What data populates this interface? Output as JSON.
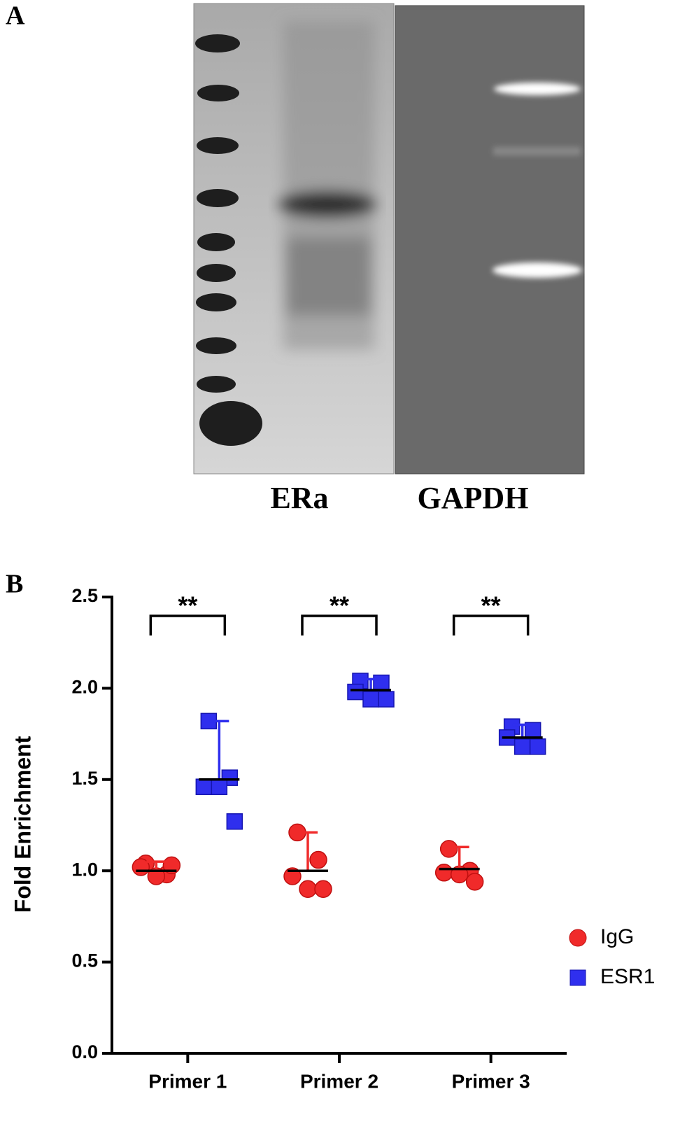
{
  "panel_a": {
    "label": "A",
    "lanes": [
      "ERa",
      "GAPDH"
    ]
  },
  "chart_data": {
    "type": "dot",
    "panel_label": "B",
    "y_label": "Fold Enrichment",
    "categories": [
      "Primer 1",
      "Primer 2",
      "Primer 3"
    ],
    "series": [
      {
        "name": "IgG",
        "color": "#f02a2a",
        "marker": "circle",
        "values": [
          [
            1.04,
            0.98,
            1.02,
            0.97,
            1.03
          ],
          [
            1.21,
            1.06,
            0.97,
            0.9,
            0.9
          ],
          [
            1.12,
            1.0,
            0.99,
            0.98,
            0.94
          ]
        ],
        "medians": [
          1.0,
          1.0,
          1.01
        ],
        "error_upper": [
          1.05,
          1.21,
          1.13
        ]
      },
      {
        "name": "ESR1",
        "color": "#2f2fee",
        "marker": "square",
        "values": [
          [
            1.82,
            1.51,
            1.46,
            1.46,
            1.27
          ],
          [
            2.04,
            2.03,
            1.98,
            1.94,
            1.94
          ],
          [
            1.79,
            1.77,
            1.73,
            1.68,
            1.68
          ]
        ],
        "medians": [
          1.5,
          1.99,
          1.73
        ],
        "error_upper": [
          1.82,
          2.05,
          1.8
        ]
      }
    ],
    "significance": [
      "**",
      "**",
      "**"
    ],
    "ylim": [
      0,
      2.5
    ],
    "yticks": [
      {
        "value": 0,
        "label": "0.0"
      },
      0.5,
      {
        "value": 1,
        "label": "1.0"
      },
      1.5,
      {
        "value": 2,
        "label": "2.0"
      },
      2.5
    ],
    "legend": "right"
  }
}
